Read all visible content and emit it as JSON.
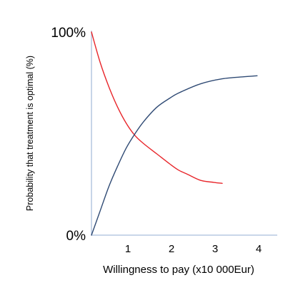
{
  "chart_data": {
    "type": "line",
    "title": "",
    "xlabel": "Willingness to pay (x10 000Eur)",
    "ylabel": "Probability that treatment is optimal (%)",
    "xlim": [
      0,
      4.3
    ],
    "ylim": [
      0,
      100
    ],
    "x_ticks": [
      "1",
      "2",
      "3",
      "4"
    ],
    "y_ticks": [
      "0%",
      "100%"
    ],
    "grid": false,
    "legend": "none",
    "series": [
      {
        "color": "#e8262b",
        "points": [
          [
            0.0,
            100
          ],
          [
            0.2,
            85
          ],
          [
            0.4,
            73
          ],
          [
            0.6,
            63
          ],
          [
            0.8,
            55
          ],
          [
            1.0,
            49
          ],
          [
            1.2,
            45
          ],
          [
            1.5,
            40
          ],
          [
            1.8,
            35
          ],
          [
            2.0,
            32
          ],
          [
            2.2,
            30
          ],
          [
            2.5,
            27
          ],
          [
            2.8,
            26
          ],
          [
            3.0,
            25.5
          ]
        ]
      },
      {
        "color": "#2f4a74",
        "points": [
          [
            0.0,
            0
          ],
          [
            0.2,
            12
          ],
          [
            0.4,
            24
          ],
          [
            0.6,
            34
          ],
          [
            0.8,
            43
          ],
          [
            1.0,
            50
          ],
          [
            1.2,
            56
          ],
          [
            1.5,
            63
          ],
          [
            1.8,
            67.5
          ],
          [
            2.0,
            70
          ],
          [
            2.5,
            74.5
          ],
          [
            3.0,
            77
          ],
          [
            3.5,
            78
          ],
          [
            3.8,
            78.5
          ]
        ]
      }
    ]
  }
}
